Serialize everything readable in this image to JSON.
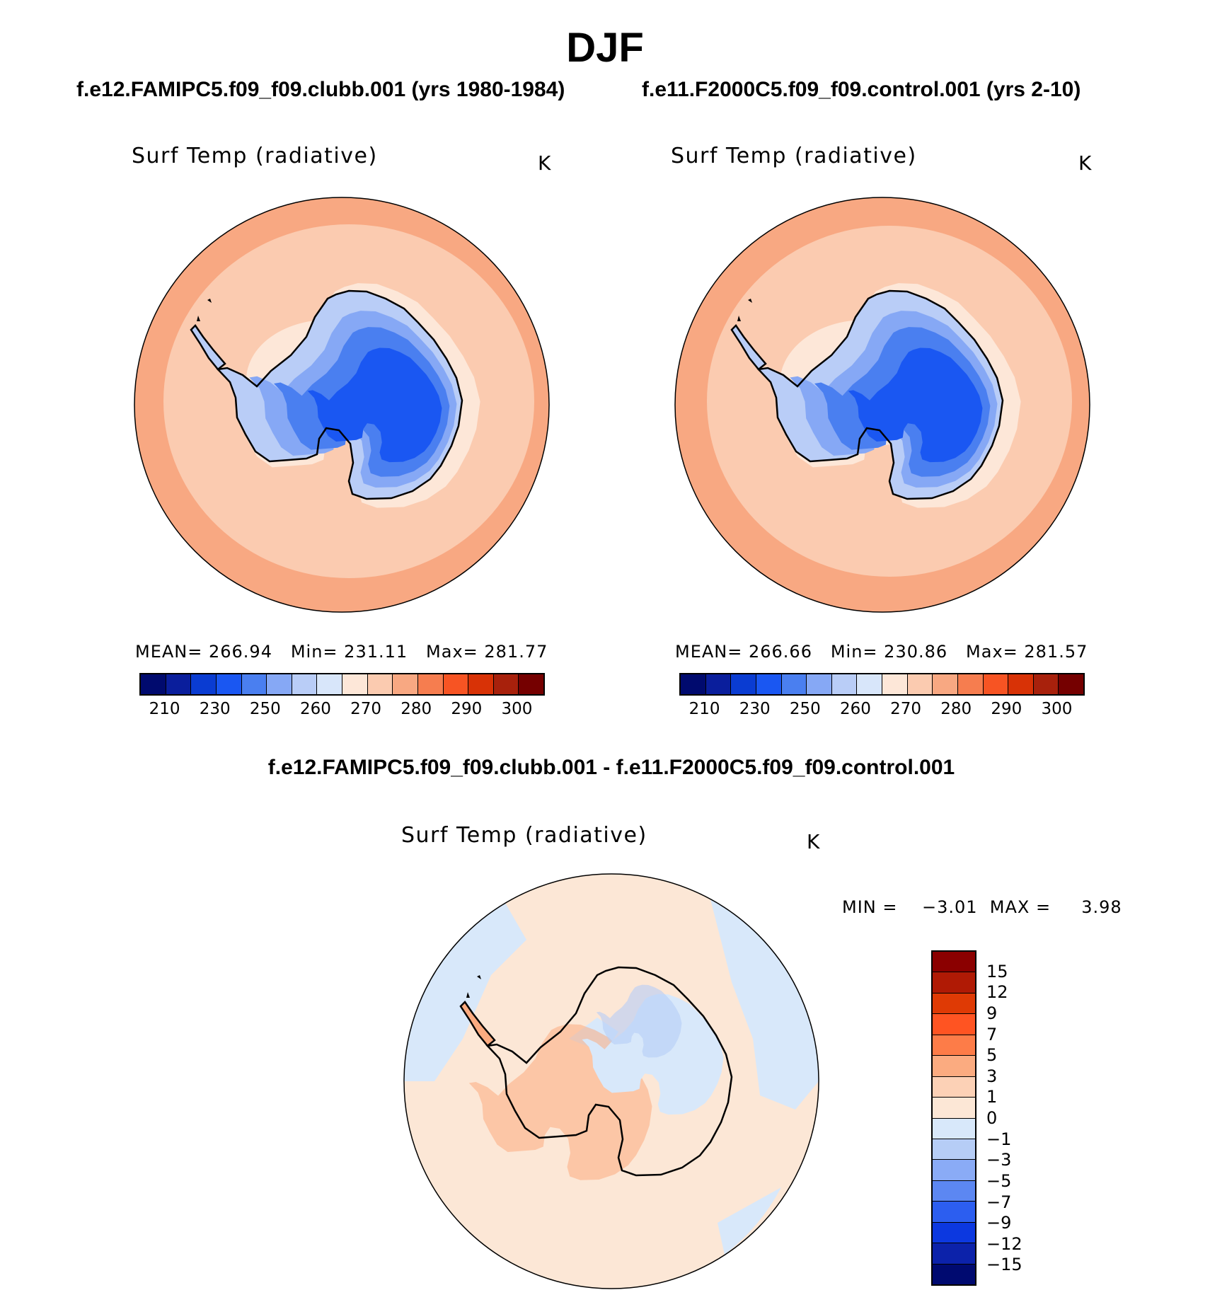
{
  "figure": {
    "season": "DJF",
    "panel_left": {
      "case_title": "f.e12.FAMIPC5.f09_f09.clubb.001 (yrs 1980-1984)",
      "var_title": "Surf Temp (radiative)",
      "units": "K",
      "stats": "MEAN= 266.94   Min= 231.11   Max= 281.77"
    },
    "panel_right": {
      "case_title": "f.e11.F2000C5.f09_f09.control.001 (yrs 2-10)",
      "var_title": "Surf Temp (radiative)",
      "units": "K",
      "stats": "MEAN= 266.66   Min= 230.86   Max= 281.57"
    },
    "panel_diff": {
      "case_title": "f.e12.FAMIPC5.f09_f09.clubb.001 - f.e11.F2000C5.f09_f09.control.001",
      "var_title": "Surf Temp (radiative)",
      "units": "K",
      "minmax": "MIN =    −3.01  MAX =     3.98"
    }
  },
  "legend_abs": {
    "colors": [
      "#000a6e",
      "#0a1e9c",
      "#0a3cd2",
      "#1a57f2",
      "#4a7ff0",
      "#86a8f5",
      "#b9cdf7",
      "#d8e6fa",
      "#fde7d8",
      "#fbcbb0",
      "#f8a882",
      "#f67d4f",
      "#f75423",
      "#d83206",
      "#a8210c",
      "#750000"
    ],
    "labels": [
      "210",
      "230",
      "250",
      "260",
      "270",
      "280",
      "290",
      "300"
    ]
  },
  "legend_diff": {
    "colors": [
      "#8b0000",
      "#b01a05",
      "#df3a05",
      "#ff5422",
      "#fd7c48",
      "#fbab80",
      "#fcd1b6",
      "#fce7d6",
      "#d8e8fa",
      "#b6cdf6",
      "#8aabf6",
      "#5c87f2",
      "#2c5ef0",
      "#0c38e0",
      "#0c22aa",
      "#000a70"
    ],
    "labels": [
      "15",
      "12",
      "9",
      "7",
      "5",
      "3",
      "1",
      "0",
      "−1",
      "−3",
      "−5",
      "−7",
      "−9",
      "−12",
      "−15"
    ]
  },
  "chart_data": [
    {
      "type": "heatmap",
      "title": "f.e12.FAMIPC5.f09_f09.clubb.001 (yrs 1980-1984)",
      "variable": "Surf Temp (radiative)",
      "units": "K",
      "projection": "south-polar stereographic",
      "mean": 266.94,
      "min": 231.11,
      "max": 281.77,
      "contour_levels": [
        210,
        220,
        230,
        240,
        250,
        255,
        260,
        265,
        270,
        275,
        280,
        285,
        290,
        295,
        300
      ]
    },
    {
      "type": "heatmap",
      "title": "f.e11.F2000C5.f09_f09.control.001 (yrs 2-10)",
      "variable": "Surf Temp (radiative)",
      "units": "K",
      "projection": "south-polar stereographic",
      "mean": 266.66,
      "min": 230.86,
      "max": 281.57,
      "contour_levels": [
        210,
        220,
        230,
        240,
        250,
        255,
        260,
        265,
        270,
        275,
        280,
        285,
        290,
        295,
        300
      ]
    },
    {
      "type": "heatmap",
      "title": "f.e12.FAMIPC5.f09_f09.clubb.001 - f.e11.F2000C5.f09_f09.control.001",
      "variable": "Surf Temp (radiative)",
      "units": "K",
      "projection": "south-polar stereographic",
      "min": -3.01,
      "max": 3.98,
      "contour_levels": [
        -15,
        -12,
        -9,
        -7,
        -5,
        -3,
        -1,
        0,
        1,
        3,
        5,
        7,
        9,
        12,
        15
      ]
    }
  ]
}
